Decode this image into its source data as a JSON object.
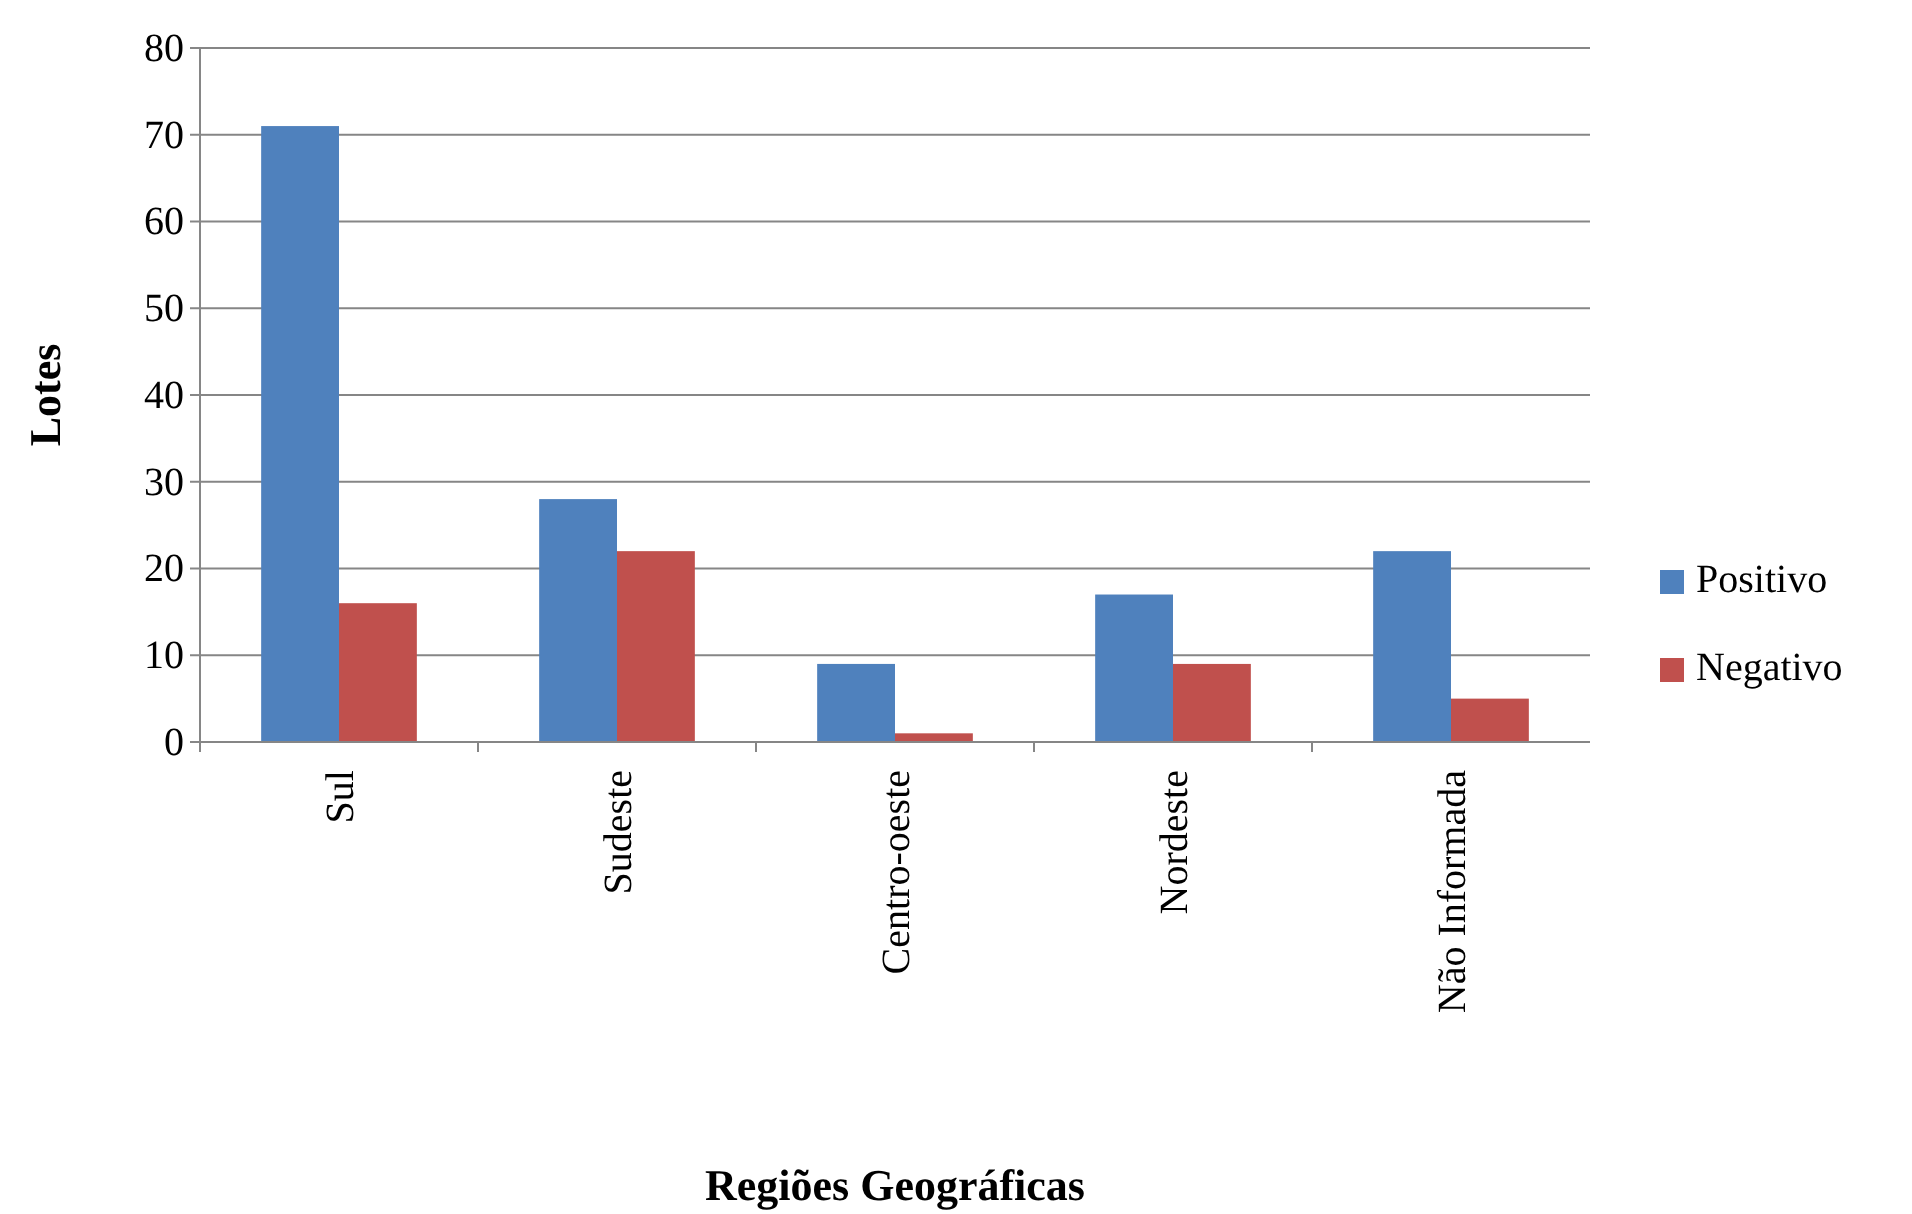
{
  "chart_data": {
    "type": "bar",
    "xlabel": "Regiões Geográficas",
    "ylabel": "Lotes",
    "categories": [
      "Sul",
      "Sudeste",
      "Centro-oeste",
      "Nordeste",
      "Não Informada"
    ],
    "series": [
      {
        "name": "Positivo",
        "color": "#4f81bd",
        "values": [
          71,
          28,
          9,
          17,
          22
        ]
      },
      {
        "name": "Negativo",
        "color": "#c0504d",
        "values": [
          16,
          22,
          1,
          9,
          5
        ]
      }
    ],
    "ylim": [
      0,
      80
    ],
    "yticks": [
      0,
      10,
      20,
      30,
      40,
      50,
      60,
      70,
      80
    ],
    "grid": "y",
    "legend": "right"
  }
}
